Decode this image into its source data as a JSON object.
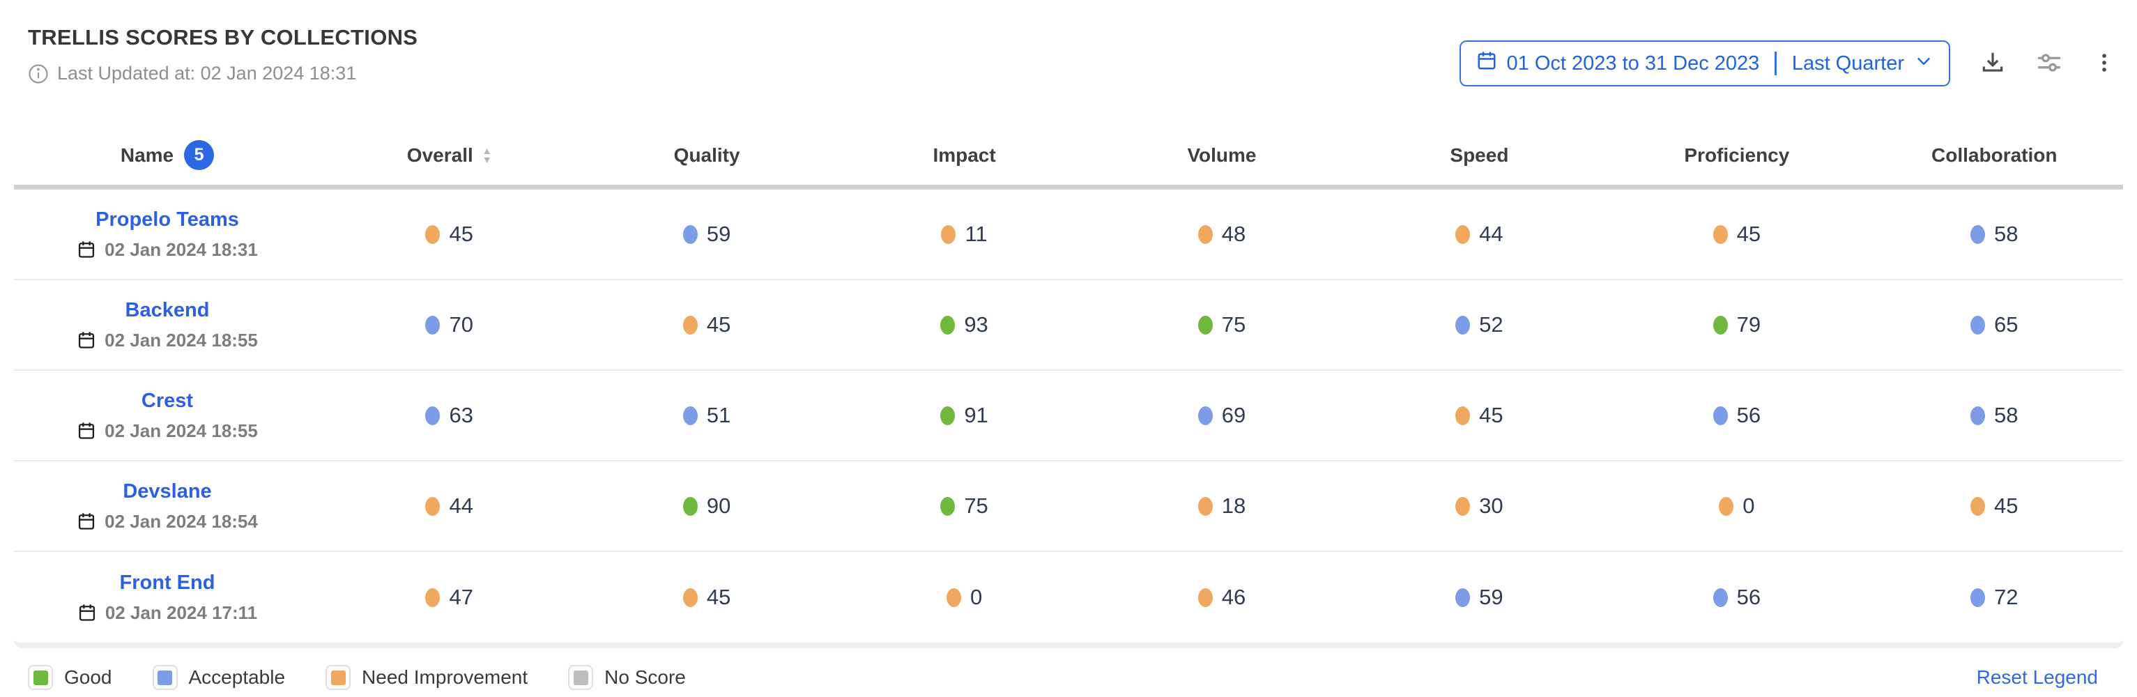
{
  "header": {
    "title": "TRELLIS SCORES BY COLLECTIONS",
    "last_updated": "Last Updated at: 02 Jan 2024 18:31",
    "date_range": "01 Oct 2023 to 31 Dec 2023",
    "date_preset": "Last Quarter"
  },
  "icons": {
    "sort_up_glyph": "▲",
    "sort_down_glyph": "▼"
  },
  "colors": {
    "good": "#6fba3e",
    "acceptable": "#7d9ce8",
    "need_improvement": "#f0a85e",
    "no_score": "#bdbdbd"
  },
  "table": {
    "columns": [
      "Name",
      "Overall",
      "Quality",
      "Impact",
      "Volume",
      "Speed",
      "Proficiency",
      "Collaboration"
    ],
    "name_badge_count": "5",
    "rows": [
      {
        "name": "Propelo Teams",
        "updated": "02 Jan 2024 18:31",
        "scores": [
          {
            "value": 45,
            "level": "need_improvement"
          },
          {
            "value": 59,
            "level": "acceptable"
          },
          {
            "value": 11,
            "level": "need_improvement"
          },
          {
            "value": 48,
            "level": "need_improvement"
          },
          {
            "value": 44,
            "level": "need_improvement"
          },
          {
            "value": 45,
            "level": "need_improvement"
          },
          {
            "value": 58,
            "level": "acceptable"
          }
        ]
      },
      {
        "name": "Backend",
        "updated": "02 Jan 2024 18:55",
        "scores": [
          {
            "value": 70,
            "level": "acceptable"
          },
          {
            "value": 45,
            "level": "need_improvement"
          },
          {
            "value": 93,
            "level": "good"
          },
          {
            "value": 75,
            "level": "good"
          },
          {
            "value": 52,
            "level": "acceptable"
          },
          {
            "value": 79,
            "level": "good"
          },
          {
            "value": 65,
            "level": "acceptable"
          }
        ]
      },
      {
        "name": "Crest",
        "updated": "02 Jan 2024 18:55",
        "scores": [
          {
            "value": 63,
            "level": "acceptable"
          },
          {
            "value": 51,
            "level": "acceptable"
          },
          {
            "value": 91,
            "level": "good"
          },
          {
            "value": 69,
            "level": "acceptable"
          },
          {
            "value": 45,
            "level": "need_improvement"
          },
          {
            "value": 56,
            "level": "acceptable"
          },
          {
            "value": 58,
            "level": "acceptable"
          }
        ]
      },
      {
        "name": "Devslane",
        "updated": "02 Jan 2024 18:54",
        "scores": [
          {
            "value": 44,
            "level": "need_improvement"
          },
          {
            "value": 90,
            "level": "good"
          },
          {
            "value": 75,
            "level": "good"
          },
          {
            "value": 18,
            "level": "need_improvement"
          },
          {
            "value": 30,
            "level": "need_improvement"
          },
          {
            "value": 0,
            "level": "need_improvement"
          },
          {
            "value": 45,
            "level": "need_improvement"
          }
        ]
      },
      {
        "name": "Front End",
        "updated": "02 Jan 2024 17:11",
        "scores": [
          {
            "value": 47,
            "level": "need_improvement"
          },
          {
            "value": 45,
            "level": "need_improvement"
          },
          {
            "value": 0,
            "level": "need_improvement"
          },
          {
            "value": 46,
            "level": "need_improvement"
          },
          {
            "value": 59,
            "level": "acceptable"
          },
          {
            "value": 56,
            "level": "acceptable"
          },
          {
            "value": 72,
            "level": "acceptable"
          }
        ]
      }
    ]
  },
  "legend": {
    "items": [
      {
        "label": "Good",
        "level": "good"
      },
      {
        "label": "Acceptable",
        "level": "acceptable"
      },
      {
        "label": "Need Improvement",
        "level": "need_improvement"
      },
      {
        "label": "No Score",
        "level": "no_score"
      }
    ],
    "reset_label": "Reset Legend"
  }
}
